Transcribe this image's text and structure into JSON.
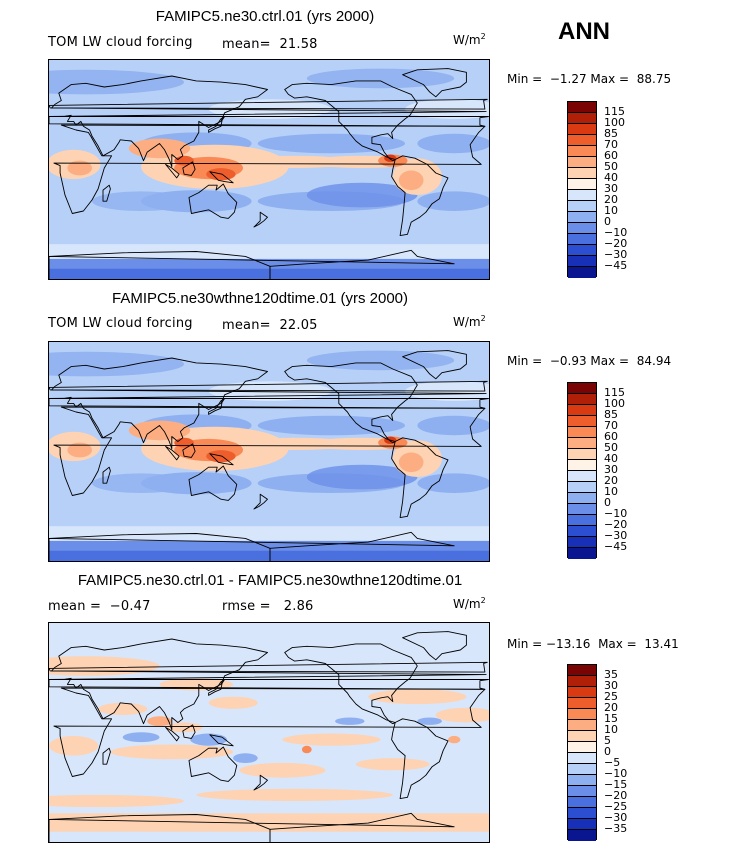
{
  "season": "ANN",
  "panels": [
    {
      "title": "FAMIPC5.ne30.ctrl.01 (yrs 2000)",
      "left_label": "TOM LW cloud forcing",
      "stat1_label": "mean=",
      "stat1_value": "21.58",
      "stat2_label": "",
      "stat2_value": "",
      "units": "W/m",
      "units_exp": "2",
      "min_label": "Min =",
      "min_value": "−1.27",
      "max_label": "Max =",
      "max_value": "88.75",
      "levels": [
        "115",
        "100",
        "85",
        "70",
        "60",
        "50",
        "40",
        "30",
        "20",
        "10",
        "0",
        "−10",
        "−20",
        "−30",
        "−45"
      ],
      "colors": [
        "#7a0403",
        "#b01f08",
        "#d93a12",
        "#ee5e2c",
        "#f98a55",
        "#fcae82",
        "#fdd3b3",
        "#fff2e6",
        "#d8e6fb",
        "#b6d0f8",
        "#8fb0f0",
        "#6b8ee8",
        "#4a6fde",
        "#2b4fd0",
        "#1830b8",
        "#0a1690"
      ]
    },
    {
      "title": "FAMIPC5.ne30wthne120dtime.01 (yrs 2000)",
      "left_label": "TOM LW cloud forcing",
      "stat1_label": "mean=",
      "stat1_value": "22.05",
      "stat2_label": "",
      "stat2_value": "",
      "units": "W/m",
      "units_exp": "2",
      "min_label": "Min =",
      "min_value": "−0.93",
      "max_label": "Max =",
      "max_value": "84.94",
      "levels": [
        "115",
        "100",
        "85",
        "70",
        "60",
        "50",
        "40",
        "30",
        "20",
        "10",
        "0",
        "−10",
        "−20",
        "−30",
        "−45"
      ],
      "colors": [
        "#7a0403",
        "#b01f08",
        "#d93a12",
        "#ee5e2c",
        "#f98a55",
        "#fcae82",
        "#fdd3b3",
        "#fff2e6",
        "#d8e6fb",
        "#b6d0f8",
        "#8fb0f0",
        "#6b8ee8",
        "#4a6fde",
        "#2b4fd0",
        "#1830b8",
        "#0a1690"
      ]
    },
    {
      "title": "FAMIPC5.ne30.ctrl.01 - FAMIPC5.ne30wthne120dtime.01",
      "left_label": "",
      "stat1_label": "mean =",
      "stat1_value": "−0.47",
      "stat2_label": "rmse =",
      "stat2_value": "2.86",
      "units": "W/m",
      "units_exp": "2",
      "min_label": "Min =",
      "min_value": "−13.16",
      "max_label": "Max =",
      "max_value": "13.41",
      "levels": [
        "35",
        "30",
        "25",
        "20",
        "15",
        "10",
        "5",
        "0",
        "−5",
        "−10",
        "−15",
        "−20",
        "−25",
        "−30",
        "−35"
      ],
      "colors": [
        "#7a0403",
        "#b01f08",
        "#d93a12",
        "#ee5e2c",
        "#f98a55",
        "#fcae82",
        "#fdd3b3",
        "#fff2e6",
        "#d8e6fb",
        "#b6d0f8",
        "#8fb0f0",
        "#6b8ee8",
        "#4a6fde",
        "#2b4fd0",
        "#1830b8",
        "#0a1690"
      ]
    }
  ]
}
